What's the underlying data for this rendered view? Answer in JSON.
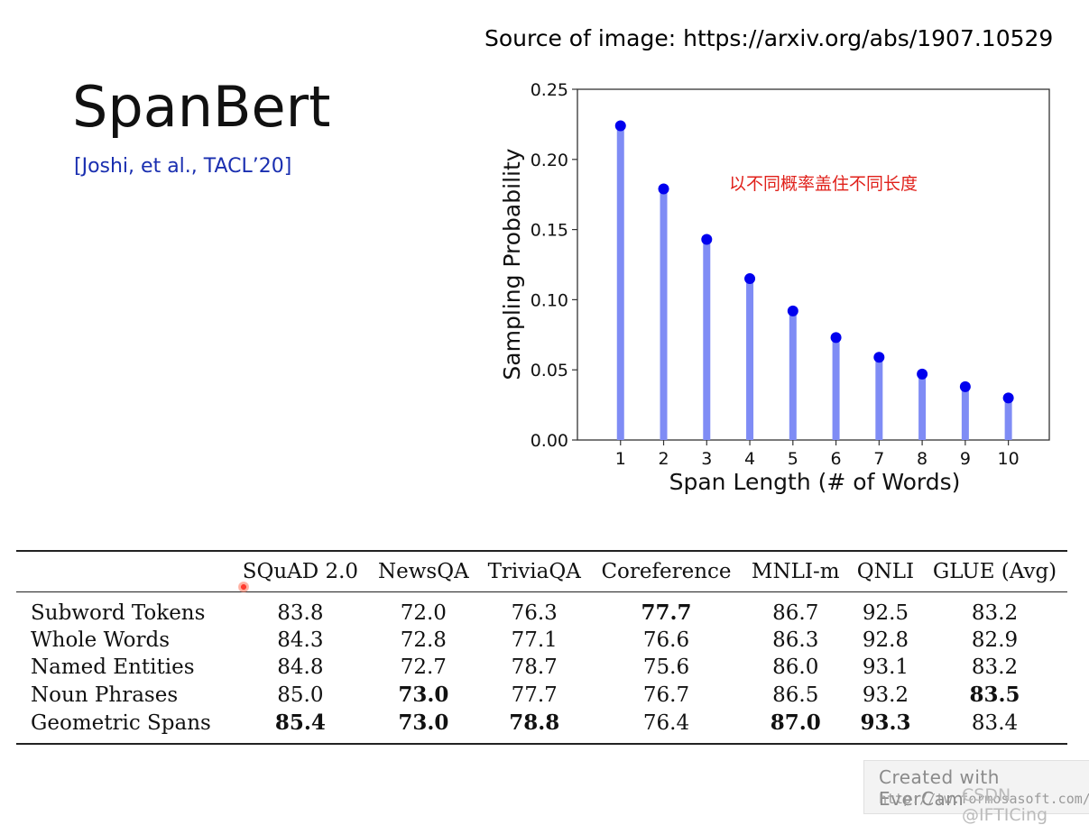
{
  "source_text": "Source of image: https://arxiv.org/abs/1907.10529",
  "slide_title": "SpanBert",
  "citation": "[Joshi, et al., TACL’20]",
  "annotation": "以不同概率盖住不同长度",
  "colors": {
    "stem": "#7f8cf5",
    "dot": "#0000ee",
    "citation": "#1a2fb0",
    "annotation": "#e0201a"
  },
  "chart_data": {
    "type": "bar",
    "x": [
      1,
      2,
      3,
      4,
      5,
      6,
      7,
      8,
      9,
      10
    ],
    "values": [
      0.224,
      0.179,
      0.143,
      0.115,
      0.092,
      0.073,
      0.059,
      0.047,
      0.038,
      0.03
    ],
    "xlabel": "Span Length (# of Words)",
    "ylabel": "Sampling Probability",
    "ylim": [
      0,
      0.25
    ],
    "xlim": [
      0,
      10.95
    ],
    "yticks": [
      "0.00",
      "0.05",
      "0.10",
      "0.15",
      "0.20",
      "0.25"
    ],
    "ytick_values": [
      0,
      0.05,
      0.1,
      0.15,
      0.2,
      0.25
    ],
    "xticks": [
      "1",
      "2",
      "3",
      "4",
      "5",
      "6",
      "7",
      "8",
      "9",
      "10"
    ],
    "grid": false
  },
  "table": {
    "headers": [
      "",
      "SQuAD 2.0",
      "NewsQA",
      "TriviaQA",
      "Coreference",
      "MNLI-m",
      "QNLI",
      "GLUE (Avg)"
    ],
    "rows": [
      {
        "label": "Subword Tokens",
        "cells": [
          "83.8",
          "72.0",
          "76.3",
          "77.7",
          "86.7",
          "92.5",
          "83.2"
        ],
        "bold": [
          false,
          false,
          false,
          true,
          false,
          false,
          false
        ]
      },
      {
        "label": "Whole Words",
        "cells": [
          "84.3",
          "72.8",
          "77.1",
          "76.6",
          "86.3",
          "92.8",
          "82.9"
        ],
        "bold": [
          false,
          false,
          false,
          false,
          false,
          false,
          false
        ]
      },
      {
        "label": "Named Entities",
        "cells": [
          "84.8",
          "72.7",
          "78.7",
          "75.6",
          "86.0",
          "93.1",
          "83.2"
        ],
        "bold": [
          false,
          false,
          false,
          false,
          false,
          false,
          false
        ]
      },
      {
        "label": "Noun Phrases",
        "cells": [
          "85.0",
          "73.0",
          "77.7",
          "76.7",
          "86.5",
          "93.2",
          "83.5"
        ],
        "bold": [
          false,
          true,
          false,
          false,
          false,
          false,
          true
        ]
      },
      {
        "label": "Geometric Spans",
        "cells": [
          "85.4",
          "73.0",
          "78.8",
          "76.4",
          "87.0",
          "93.3",
          "83.4"
        ],
        "bold": [
          true,
          true,
          true,
          false,
          true,
          true,
          false
        ]
      }
    ]
  },
  "watermark": {
    "line1": "Created  with  EverCam",
    "line2": "http://tw.formosasoft.com/",
    "overlay": "CSDN @IFTICing"
  }
}
